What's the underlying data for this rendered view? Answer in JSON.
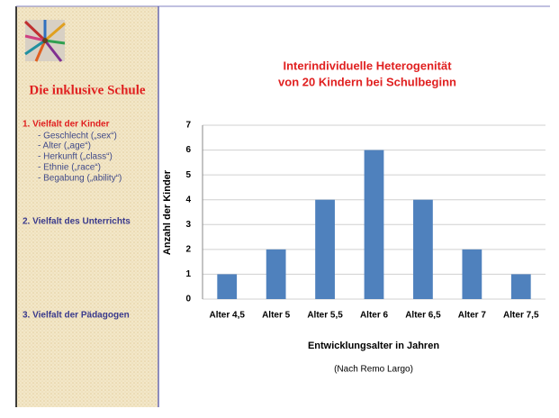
{
  "sidebar": {
    "title": "Die inklusive Schule",
    "sections": [
      {
        "heading": "1. Vielfalt der Kinder",
        "items": [
          "- Geschlecht („sex“)",
          "- Alter („age“)",
          "- Herkunft („class“)",
          "- Ethnie („race“)",
          "- Begabung („ability“)"
        ]
      },
      {
        "heading": "2. Vielfalt des Unterrichts"
      },
      {
        "heading": "3. Vielfalt der Pädagogen"
      }
    ]
  },
  "chart_data": {
    "type": "bar",
    "title": [
      "Interindividuelle Heterogenität",
      "von 20 Kindern bei Schulbeginn"
    ],
    "x_label": "Entwicklungsalter in Jahren",
    "y_label": "Anzahl der Kinder",
    "source": "(Nach Remo Largo)",
    "categories": [
      "Alter 4,5",
      "Alter 5",
      "Alter 5,5",
      "Alter 6",
      "Alter 6,5",
      "Alter 7",
      "Alter 7,5"
    ],
    "values": [
      1,
      2,
      4,
      6,
      4,
      2,
      1
    ],
    "color": "#4f81bd",
    "ylim": [
      0,
      7
    ],
    "yticks": [
      0,
      1,
      2,
      3,
      4,
      5,
      6,
      7
    ],
    "grid": true
  }
}
